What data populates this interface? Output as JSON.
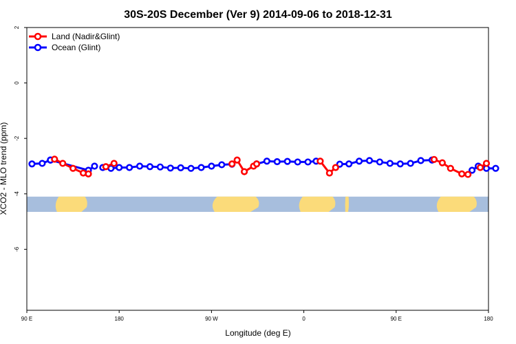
{
  "chart_data": {
    "type": "line",
    "title": "30S-20S December (Ver 9)   2014-09-06 to 2018-12-31",
    "xlabel": "Longitude (deg E)",
    "ylabel": "XCO2 - MLO trend (ppm)",
    "xlim": [
      90,
      540
    ],
    "ylim": [
      -8.2,
      2
    ],
    "x_ticks": [
      {
        "value": 90,
        "label": "90 E"
      },
      {
        "value": 180,
        "label": "180"
      },
      {
        "value": 270,
        "label": "90 W"
      },
      {
        "value": 360,
        "label": "0"
      },
      {
        "value": 450,
        "label": "90 E"
      },
      {
        "value": 540,
        "label": "180"
      }
    ],
    "y_ticks": [
      {
        "value": 2,
        "label": "2"
      },
      {
        "value": 0,
        "label": "0"
      },
      {
        "value": -2,
        "label": "-2"
      },
      {
        "value": -4,
        "label": "-4"
      },
      {
        "value": -6,
        "label": "-6"
      }
    ],
    "legend_position": "top-left",
    "colors": {
      "land": "#ff0000",
      "ocean": "#0000ff",
      "map_ocean": "#a7bedd",
      "map_land": "#fbdb7a"
    },
    "map_band": {
      "y_top": -4.1,
      "y_bottom": -4.65
    },
    "map_land_ranges": [
      [
        116,
        150
      ],
      [
        268,
        318
      ],
      [
        353,
        392
      ],
      [
        400,
        404
      ],
      [
        487,
        530
      ]
    ],
    "series": [
      {
        "name": "Land (Nadir&Glint)",
        "color": "#ff0000",
        "segments": [
          {
            "x": [
              117,
              125,
              135,
              145,
              150
            ],
            "y": [
              -2.75,
              -2.9,
              -3.08,
              -3.25,
              -3.28
            ]
          },
          {
            "x": [
              167,
              175
            ],
            "y": [
              -3.02,
              -2.9
            ]
          },
          {
            "x": [
              290,
              295,
              302,
              311,
              314
            ],
            "y": [
              -2.92,
              -2.78,
              -3.2,
              -3.0,
              -2.92
            ]
          },
          {
            "x": [
              376,
              385,
              391
            ],
            "y": [
              -2.82,
              -3.25,
              -3.05
            ]
          },
          {
            "x": [
              487,
              495,
              503,
              514,
              520
            ],
            "y": [
              -2.76,
              -2.88,
              -3.08,
              -3.28,
              -3.3
            ]
          },
          {
            "x": [
              532,
              538
            ],
            "y": [
              -3.05,
              -2.9
            ]
          }
        ]
      },
      {
        "name": "Ocean (Glint)",
        "color": "#0000ff",
        "segments": [
          {
            "x": [
              95,
              105,
              113
            ],
            "y": [
              -2.92,
              -2.9,
              -2.78
            ]
          },
          {
            "x": [
              113,
              150,
              156
            ],
            "y": [
              -2.78,
              -3.15,
              -3.0
            ]
          },
          {
            "x": [
              164,
              172,
              180,
              190,
              200,
              210,
              220,
              230,
              240,
              250,
              260,
              270,
              280,
              290
            ],
            "y": [
              -3.05,
              -3.08,
              -3.05,
              -3.05,
              -3.0,
              -3.02,
              -3.03,
              -3.07,
              -3.06,
              -3.08,
              -3.05,
              -3.0,
              -2.95,
              -2.93
            ]
          },
          {
            "x": [
              314,
              324,
              334,
              344,
              354,
              364,
              372
            ],
            "y": [
              -2.92,
              -2.82,
              -2.84,
              -2.83,
              -2.85,
              -2.85,
              -2.82
            ]
          },
          {
            "x": [
              395,
              404,
              414,
              424,
              434,
              444,
              454,
              464,
              474,
              485
            ],
            "y": [
              -2.93,
              -2.92,
              -2.82,
              -2.8,
              -2.85,
              -2.9,
              -2.92,
              -2.9,
              -2.8,
              -2.78
            ]
          },
          {
            "x": [
              524,
              530,
              538,
              547
            ],
            "y": [
              -3.15,
              -3.0,
              -3.08,
              -3.08
            ]
          }
        ]
      }
    ]
  }
}
